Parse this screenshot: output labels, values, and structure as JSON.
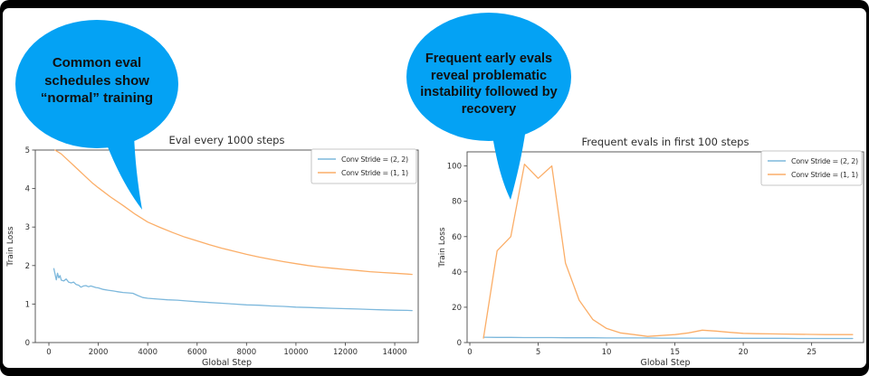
{
  "bubbles": [
    {
      "color": "#04A2F4",
      "lines": [
        "Common eval",
        "schedules show",
        "“normal” training"
      ]
    },
    {
      "color": "#04A2F4",
      "lines": [
        "Frequent early evals",
        "reveal problematic",
        "instability followed by",
        "recovery"
      ]
    }
  ],
  "chart_data": [
    {
      "type": "line",
      "title": "Eval every 1000 steps",
      "xlabel": "Global Step",
      "ylabel": "Train Loss",
      "xlim": [
        -550,
        14950
      ],
      "ylim": [
        0,
        5
      ],
      "xticks": [
        0,
        2000,
        4000,
        6000,
        8000,
        10000,
        12000,
        14000
      ],
      "yticks": [
        0,
        1,
        2,
        3,
        4,
        5
      ],
      "grid": false,
      "legend_position": "upper right",
      "series": [
        {
          "name": "Conv Stride =  (2, 2)",
          "color": "#7DB8DC",
          "x": [
            200,
            300,
            350,
            400,
            450,
            500,
            600,
            700,
            800,
            900,
            1000,
            1100,
            1200,
            1300,
            1400,
            1500,
            1600,
            1700,
            1800,
            1900,
            2000,
            2200,
            2400,
            2600,
            2800,
            3000,
            3200,
            3400,
            3600,
            3800,
            4000,
            4400,
            4800,
            5200,
            5600,
            6000,
            6500,
            7000,
            7500,
            8000,
            8500,
            9000,
            9500,
            10000,
            10500,
            11000,
            11500,
            12000,
            12500,
            13000,
            13500,
            14000,
            14500,
            14700
          ],
          "y": [
            1.92,
            1.63,
            1.8,
            1.68,
            1.74,
            1.62,
            1.6,
            1.65,
            1.57,
            1.55,
            1.57,
            1.51,
            1.49,
            1.44,
            1.47,
            1.48,
            1.45,
            1.47,
            1.45,
            1.43,
            1.42,
            1.38,
            1.36,
            1.34,
            1.32,
            1.3,
            1.29,
            1.28,
            1.22,
            1.17,
            1.15,
            1.13,
            1.11,
            1.1,
            1.08,
            1.06,
            1.04,
            1.02,
            1.0,
            0.98,
            0.97,
            0.95,
            0.94,
            0.92,
            0.91,
            0.9,
            0.89,
            0.88,
            0.87,
            0.86,
            0.85,
            0.84,
            0.835,
            0.83
          ]
        },
        {
          "name": "Conv Stride =  (1, 1)",
          "color": "#FBAE68",
          "x": [
            250,
            500,
            750,
            1000,
            1250,
            1500,
            1750,
            2000,
            2500,
            3000,
            3500,
            4000,
            4500,
            5000,
            5500,
            6000,
            6500,
            7000,
            7500,
            8000,
            8500,
            9000,
            9500,
            10000,
            10500,
            11000,
            11500,
            12000,
            12500,
            13000,
            13500,
            14000,
            14500,
            14700
          ],
          "y": [
            5.0,
            4.9,
            4.75,
            4.6,
            4.45,
            4.3,
            4.15,
            4.02,
            3.78,
            3.56,
            3.33,
            3.13,
            2.99,
            2.86,
            2.74,
            2.64,
            2.54,
            2.45,
            2.37,
            2.29,
            2.22,
            2.16,
            2.1,
            2.05,
            2.0,
            1.96,
            1.93,
            1.9,
            1.87,
            1.84,
            1.82,
            1.8,
            1.78,
            1.77
          ]
        }
      ]
    },
    {
      "type": "line",
      "title": "Frequent evals in first 100 steps",
      "xlabel": "Global Step",
      "ylabel": "Train Loss",
      "xlim": [
        -0.2,
        28.8
      ],
      "ylim": [
        0,
        108
      ],
      "xticks": [
        0,
        5,
        10,
        15,
        20,
        25
      ],
      "yticks": [
        0,
        20,
        40,
        60,
        80,
        100
      ],
      "grid": false,
      "legend_position": "upper right",
      "series": [
        {
          "name": "Conv Stride =  (2, 2)",
          "color": "#7DB8DC",
          "x": [
            1,
            2,
            3,
            4,
            5,
            6,
            7,
            8,
            9,
            10,
            11,
            12,
            13,
            14,
            15,
            16,
            17,
            18,
            19,
            20,
            21,
            22,
            23,
            24,
            25,
            26,
            27,
            28
          ],
          "y": [
            3.0,
            2.9,
            2.9,
            2.8,
            2.8,
            2.8,
            2.7,
            2.7,
            2.7,
            2.6,
            2.6,
            2.6,
            2.6,
            2.5,
            2.5,
            2.5,
            2.5,
            2.5,
            2.4,
            2.4,
            2.4,
            2.4,
            2.4,
            2.3,
            2.3,
            2.3,
            2.3,
            2.3
          ]
        },
        {
          "name": "Conv Stride =  (1, 1)",
          "color": "#FBAE68",
          "x": [
            1,
            2,
            3,
            4,
            5,
            6,
            7,
            8,
            9,
            10,
            11,
            12,
            13,
            14,
            15,
            16,
            17,
            18,
            19,
            20,
            21,
            22,
            23,
            24,
            25,
            26,
            27,
            28
          ],
          "y": [
            2.5,
            52,
            60,
            101,
            93,
            100,
            45,
            24,
            13,
            8,
            5.5,
            4.5,
            3.5,
            4,
            4.5,
            5.5,
            7,
            6.5,
            5.8,
            5.2,
            5,
            4.9,
            4.8,
            4.7,
            4.6,
            4.5,
            4.5,
            4.5
          ]
        }
      ]
    }
  ]
}
